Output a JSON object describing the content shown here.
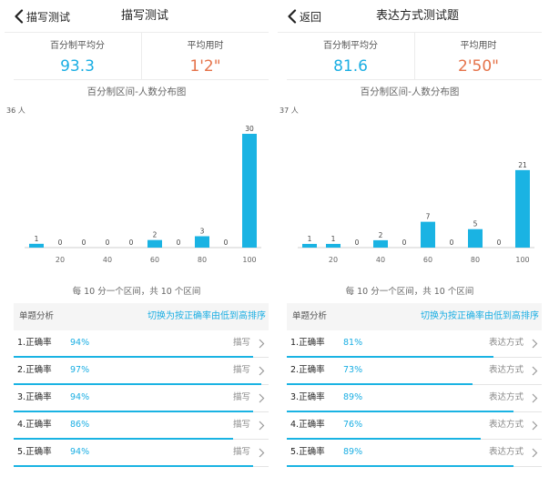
{
  "colors": {
    "accent": "#1aaee3",
    "bar": "#1ab3e3",
    "orange": "#e5734a"
  },
  "panels": [
    {
      "back_label": "描写测试",
      "title": "描写测试",
      "stats": {
        "avg_label": "百分制平均分",
        "avg_value": "93.3",
        "time_label": "平均用时",
        "time_value": "1'2\""
      },
      "chart_title": "百分制区间-人数分布图",
      "chart_note": "每 10 分一个区间，共 10 个区间",
      "chart_data": {
        "type": "bar",
        "title": "百分制区间-人数分布图",
        "ymax_label": "36 人",
        "ylim": [
          0,
          36
        ],
        "values": [
          1,
          0,
          0,
          0,
          0,
          2,
          0,
          3,
          0,
          30
        ],
        "tick_labels": [
          "20",
          "40",
          "60",
          "80",
          "100"
        ],
        "xlabel": "",
        "ylabel": "",
        "grid": false
      },
      "analysis": {
        "label": "单题分析",
        "sort_label": "切换为按正确率由低到高排序",
        "rows": [
          {
            "label": "1.正确率",
            "pct": "94%",
            "rate": 0.94,
            "category": "描写"
          },
          {
            "label": "2.正确率",
            "pct": "97%",
            "rate": 0.97,
            "category": "描写"
          },
          {
            "label": "3.正确率",
            "pct": "94%",
            "rate": 0.94,
            "category": "描写"
          },
          {
            "label": "4.正确率",
            "pct": "86%",
            "rate": 0.86,
            "category": "描写"
          },
          {
            "label": "5.正确率",
            "pct": "94%",
            "rate": 0.94,
            "category": "描写"
          }
        ]
      }
    },
    {
      "back_label": "返回",
      "title": "表达方式测试题",
      "stats": {
        "avg_label": "百分制平均分",
        "avg_value": "81.6",
        "time_label": "平均用时",
        "time_value": "2'50\""
      },
      "chart_title": "百分制区间-人数分布图",
      "chart_note": "每 10 分一个区间，共 10 个区间",
      "chart_data": {
        "type": "bar",
        "title": "百分制区间-人数分布图",
        "ymax_label": "37 人",
        "ylim": [
          0,
          37
        ],
        "values": [
          1,
          1,
          0,
          2,
          0,
          7,
          0,
          5,
          0,
          21
        ],
        "tick_labels": [
          "20",
          "40",
          "60",
          "80",
          "100"
        ],
        "xlabel": "",
        "ylabel": "",
        "grid": false
      },
      "analysis": {
        "label": "单题分析",
        "sort_label": "切换为按正确率由低到高排序",
        "rows": [
          {
            "label": "1.正确率",
            "pct": "81%",
            "rate": 0.81,
            "category": "表达方式"
          },
          {
            "label": "2.正确率",
            "pct": "73%",
            "rate": 0.73,
            "category": "表达方式"
          },
          {
            "label": "3.正确率",
            "pct": "89%",
            "rate": 0.89,
            "category": "表达方式"
          },
          {
            "label": "4.正确率",
            "pct": "76%",
            "rate": 0.76,
            "category": "表达方式"
          },
          {
            "label": "5.正确率",
            "pct": "89%",
            "rate": 0.89,
            "category": "表达方式"
          }
        ]
      }
    }
  ]
}
